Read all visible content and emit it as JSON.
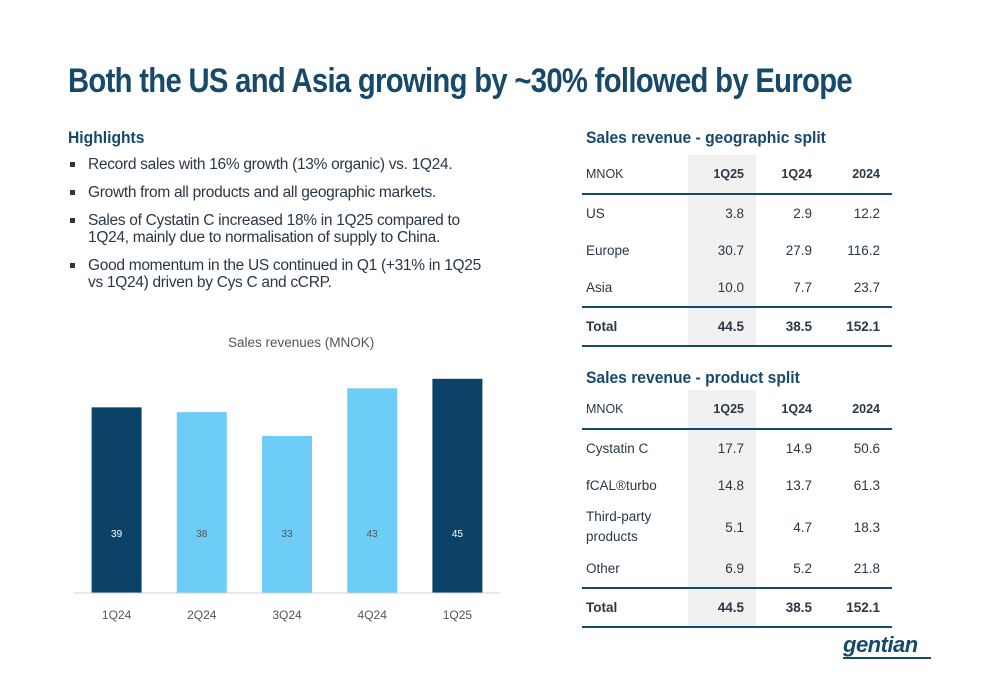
{
  "title": "Both the US and Asia growing by ~30% followed by Europe",
  "highlights": {
    "heading": "Highlights",
    "items": [
      "Record sales with 16% growth (13% organic) vs. 1Q24.",
      "Growth from all products and all geographic markets.",
      "Sales of Cystatin C increased 18% in 1Q25 compared to 1Q24, mainly due to normalisation of supply to China.",
      "Good momentum in the US continued in Q1 (+31% in 1Q25 vs 1Q24) driven by Cys C and cCRP."
    ]
  },
  "chart_data": {
    "type": "bar",
    "title": "Sales revenues (MNOK)",
    "categories": [
      "1Q24",
      "2Q24",
      "3Q24",
      "4Q24",
      "1Q25"
    ],
    "values": [
      39,
      38,
      33,
      43,
      45
    ],
    "bar_colors": [
      "#0d4268",
      "#6dcdf6",
      "#6dcdf6",
      "#6dcdf6",
      "#0d4268"
    ],
    "label_colors": [
      "#ffffff",
      "#555555",
      "#555555",
      "#555555",
      "#ffffff"
    ],
    "ylim": [
      0,
      50
    ],
    "grid": false,
    "legend": "none"
  },
  "geo_table": {
    "heading": "Sales revenue - geographic split",
    "header": [
      "MNOK",
      "1Q25",
      "1Q24",
      "2024"
    ],
    "rows": [
      [
        "US",
        "3.8",
        "2.9",
        "12.2"
      ],
      [
        "Europe",
        "30.7",
        "27.9",
        "116.2"
      ],
      [
        "Asia",
        "10.0",
        "7.7",
        "23.7"
      ]
    ],
    "total": [
      "Total",
      "44.5",
      "38.5",
      "152.1"
    ]
  },
  "product_table": {
    "heading": "Sales revenue - product split",
    "header": [
      "MNOK",
      "1Q25",
      "1Q24",
      "2024"
    ],
    "rows": [
      [
        "Cystatin C",
        "17.7",
        "14.9",
        "50.6"
      ],
      [
        "fCAL®turbo",
        "14.8",
        "13.7",
        "61.3"
      ],
      [
        "Third-party products",
        "5.1",
        "4.7",
        "18.3"
      ],
      [
        "Other",
        "6.9",
        "5.2",
        "21.8"
      ]
    ],
    "total": [
      "Total",
      "44.5",
      "38.5",
      "152.1"
    ]
  },
  "logo_text": "gentian",
  "colors": {
    "brand": "#17496b",
    "dark_bar": "#0d4268",
    "light_bar": "#6dcdf6"
  }
}
